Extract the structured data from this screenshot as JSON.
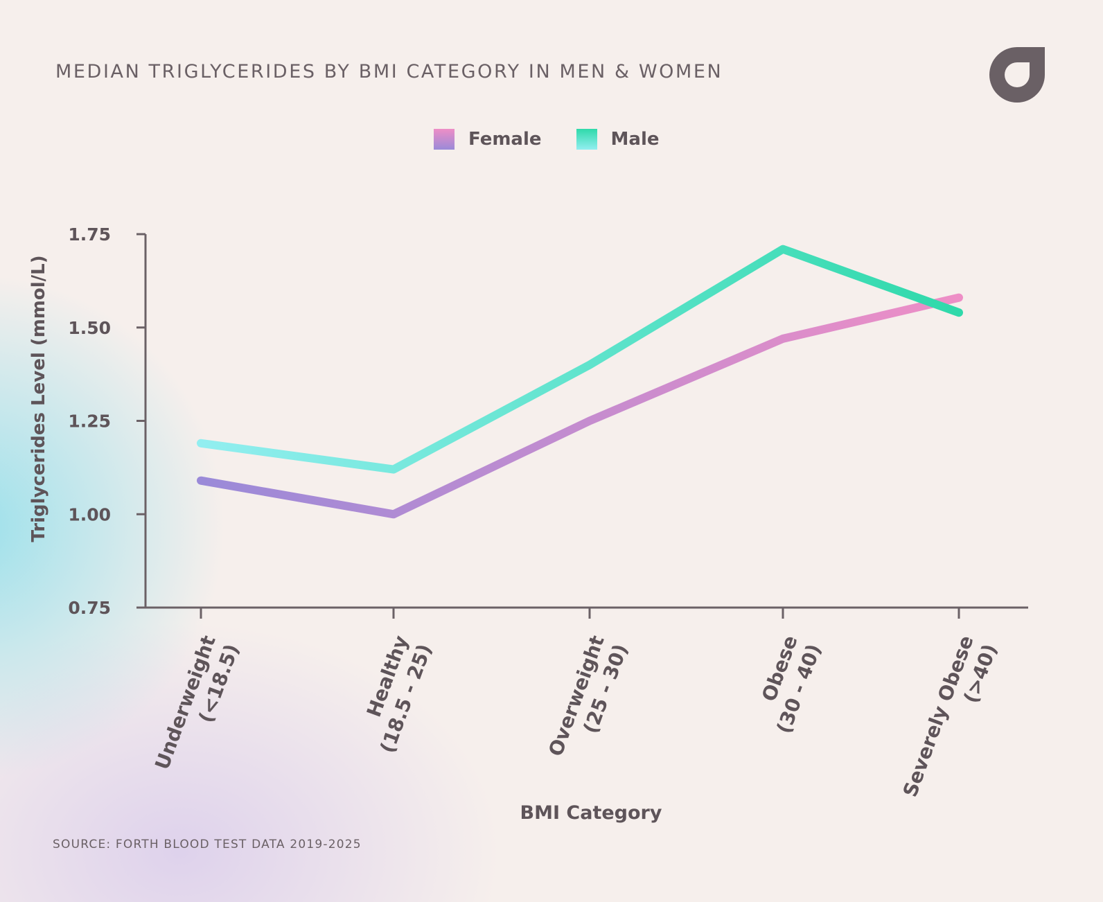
{
  "title": "MEDIAN TRIGLYCERIDES BY BMI CATEGORY IN MEN & WOMEN",
  "source": "SOURCE: FORTH BLOOD TEST DATA 2019-2025",
  "logo_icon": "forth-logo-icon",
  "colors": {
    "background": "#f6efec",
    "text": "#5e5459",
    "axis": "#6b6166",
    "female_start": "#9a8ad8",
    "female_end": "#ee8ec6",
    "male_start": "#92eef0",
    "male_end": "#2fd9aa"
  },
  "legend": {
    "female": "Female",
    "male": "Male"
  },
  "chart_data": {
    "type": "line",
    "title": "MEDIAN TRIGLYCERIDES BY BMI CATEGORY IN MEN & WOMEN",
    "xlabel": "BMI Category",
    "ylabel": "Triglycerides Level (mmol/L)",
    "ylim": [
      0.75,
      1.75
    ],
    "yticks": [
      "1.75",
      "1.50",
      "1.25",
      "1.00",
      "0.75"
    ],
    "ytick_values": [
      1.75,
      1.5,
      1.25,
      1.0,
      0.75
    ],
    "categories": [
      [
        "Underweight",
        "(<18.5)"
      ],
      [
        "Healthy",
        "(18.5 - 25)"
      ],
      [
        "Overweight",
        "(25 - 30)"
      ],
      [
        "Obese",
        "(30 - 40)"
      ],
      [
        "Severely Obese",
        "(>40)"
      ]
    ],
    "series": [
      {
        "name": "Female",
        "values": [
          1.09,
          1.0,
          1.25,
          1.47,
          1.58
        ]
      },
      {
        "name": "Male",
        "values": [
          1.19,
          1.12,
          1.4,
          1.71,
          1.54
        ]
      }
    ],
    "grid": false,
    "legend_position": "top-center"
  }
}
